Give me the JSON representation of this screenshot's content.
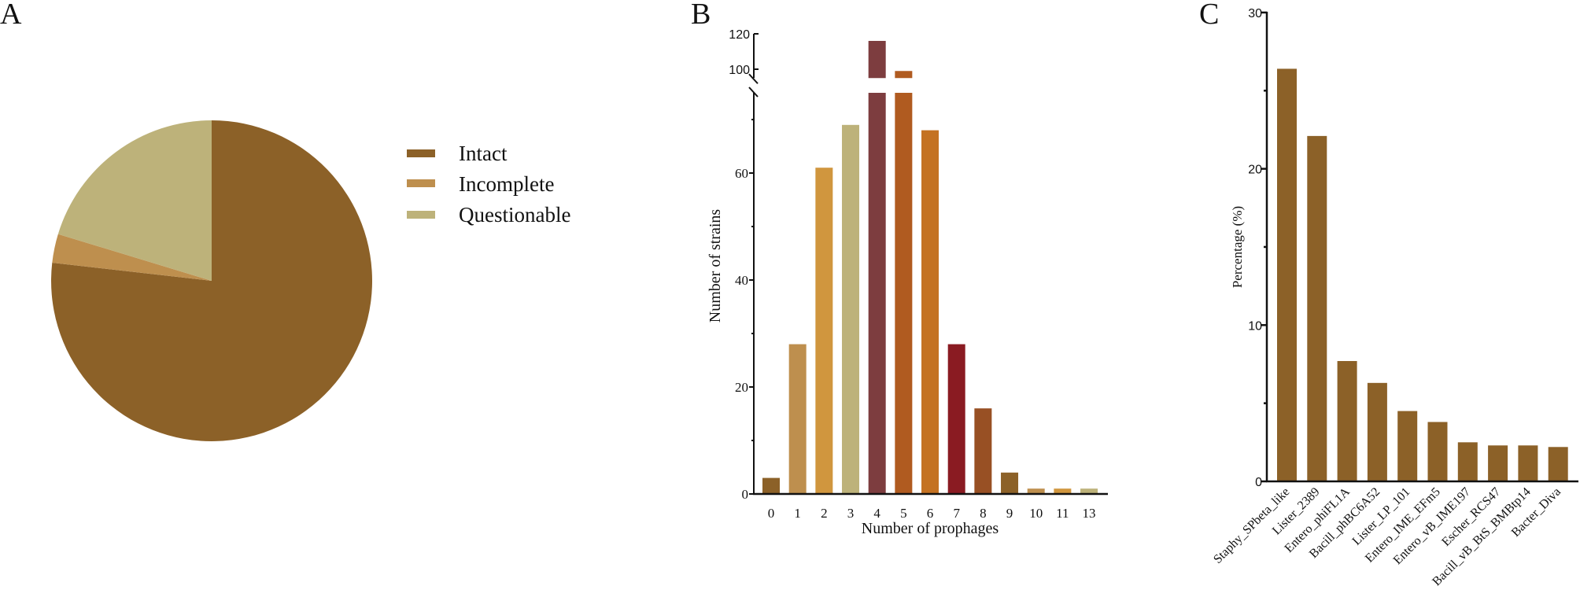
{
  "panels": {
    "a": "A",
    "b": "B",
    "c": "C"
  },
  "chart_data": [
    {
      "type": "pie",
      "panel": "A",
      "title": "",
      "slices": [
        {
          "label": "Intact",
          "value": 76.8,
          "color": "#8C6128"
        },
        {
          "label": "Incomplete",
          "value": 2.9,
          "color": "#BE8F4E"
        },
        {
          "label": "Questionable",
          "value": 20.3,
          "color": "#BDB27A"
        }
      ],
      "start": "top",
      "direction": "clockwise",
      "legend": "right"
    },
    {
      "type": "bar",
      "panel": "B",
      "xlabel": "Number of prophages",
      "ylabel": "Number of strains",
      "categories": [
        "0",
        "1",
        "2",
        "3",
        "4",
        "5",
        "6",
        "7",
        "8",
        "9",
        "10",
        "11",
        "13"
      ],
      "values": [
        3,
        28,
        61,
        69,
        116,
        99,
        68,
        28,
        16,
        4,
        1,
        1,
        1
      ],
      "colors": [
        "#8C6128",
        "#BE8F4E",
        "#D0963E",
        "#BDB27A",
        "#7D3D3F",
        "#B05B20",
        "#C47222",
        "#8A1B22",
        "#985024",
        "#8C6128",
        "#BE8F4E",
        "#D0963E",
        "#BDB27A"
      ],
      "ylim_lower": [
        0,
        75
      ],
      "ylim_upper": [
        95,
        120
      ],
      "yticks_lower": [
        "0",
        "20",
        "40",
        "60"
      ],
      "yticks_lower_values": [
        0,
        20,
        40,
        60
      ],
      "yminor_lower_values": [
        10,
        30,
        50,
        70
      ],
      "yticks_upper": [
        "100",
        "120"
      ],
      "yticks_upper_values": [
        100,
        120
      ],
      "axis_break": true
    },
    {
      "type": "bar",
      "panel": "C",
      "xlabel": "",
      "ylabel": "Percentage (%)",
      "categories": [
        "Staphy_SPbeta_like",
        "Lister_2389",
        "Entero_phiFL1A",
        "Bacill_phBC6A52",
        "Lister_LP_101",
        "Entero_IME_EFm5",
        "Entero_vB_IME197",
        "Escher_RCS47",
        "Bacill_vB_BtS_BMBtp14",
        "Bacter_Diva"
      ],
      "values": [
        26.4,
        22.1,
        7.7,
        6.3,
        4.5,
        3.8,
        2.5,
        2.3,
        2.3,
        2.2
      ],
      "color": "#8C6128",
      "ylim": [
        0,
        30
      ],
      "yticks": [
        "0",
        "10",
        "20",
        "30"
      ],
      "yticks_values": [
        0,
        10,
        20,
        30
      ],
      "yminor_values": [
        5,
        15,
        25
      ]
    }
  ]
}
